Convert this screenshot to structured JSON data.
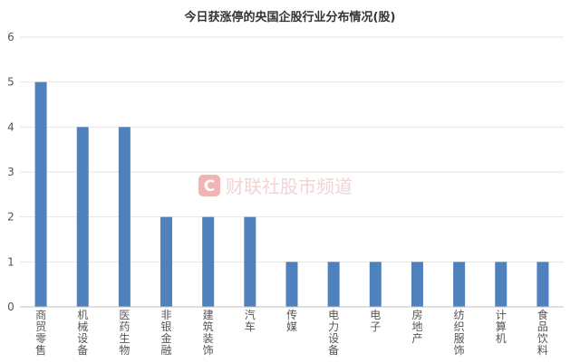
{
  "chart_data": {
    "type": "bar",
    "title": "今日获涨停的央国企股行业分布情况(股)",
    "categories": [
      "商贸零售",
      "机械设备",
      "医药生物",
      "非银金融",
      "建筑装饰",
      "汽车",
      "传媒",
      "电力设备",
      "电子",
      "房地产",
      "纺织服饰",
      "计算机",
      "食品饮料"
    ],
    "values": [
      5,
      4,
      4,
      2,
      2,
      2,
      1,
      1,
      1,
      1,
      1,
      1,
      1
    ],
    "ylim": [
      0,
      6
    ],
    "yticks": [
      0,
      1,
      2,
      3,
      4,
      5,
      6
    ],
    "grid": true,
    "bar_color": "#4f81bd"
  },
  "watermark": {
    "logo_letter": "C",
    "text": "财联社股市频道",
    "color": "#e9a3a3"
  }
}
